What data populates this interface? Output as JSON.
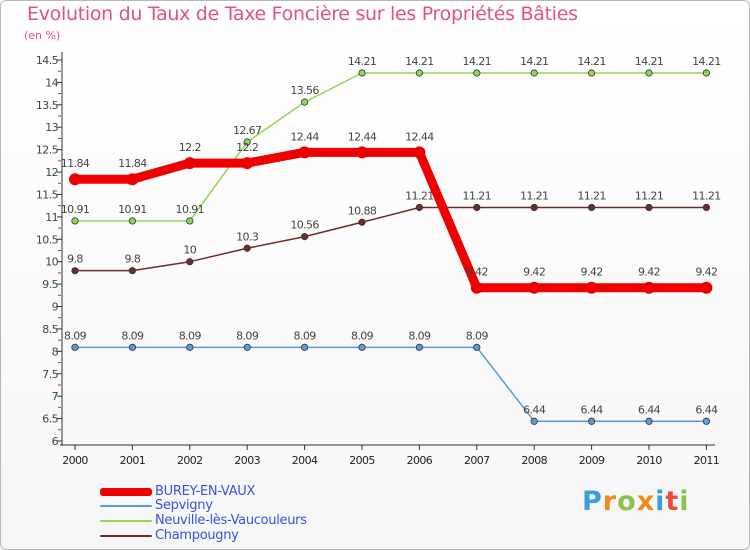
{
  "chart_data": {
    "type": "line",
    "title": "Evolution du Taux de Taxe Foncière sur les Propriétés Bâties",
    "ylabel": "(en %)",
    "xlabel": "",
    "categories": [
      "2000",
      "2001",
      "2002",
      "2003",
      "2004",
      "2005",
      "2006",
      "2007",
      "2008",
      "2009",
      "2010",
      "2011"
    ],
    "ylim": [
      6,
      14.5
    ],
    "yticks": [
      "6",
      "6.5",
      "7",
      "7.5",
      "8",
      "8.5",
      "9",
      "9.5",
      "10",
      "10.5",
      "11",
      "11.5",
      "12",
      "12.5",
      "13",
      "13.5",
      "14",
      "14.5"
    ],
    "series": [
      {
        "name": "Sepvigny",
        "color": "#5b9bd5",
        "values": [
          8.09,
          8.09,
          8.09,
          8.09,
          8.09,
          8.09,
          8.09,
          8.09,
          6.44,
          6.44,
          6.44,
          6.44
        ],
        "labels": [
          "8.09",
          "8.09",
          "8.09",
          "8.09",
          "8.09",
          "8.09",
          "8.09",
          "8.09",
          "6.44",
          "6.44",
          "6.44",
          "6.44"
        ]
      },
      {
        "name": "Neuville-lès-Vaucouleurs",
        "color": "#8ed65a",
        "values": [
          10.91,
          10.91,
          10.91,
          12.67,
          13.56,
          14.21,
          14.21,
          14.21,
          14.21,
          14.21,
          14.21,
          14.21
        ],
        "labels": [
          "10.91",
          "10.91",
          "10.91",
          "12.67",
          "13.56",
          "14.21",
          "14.21",
          "14.21",
          "14.21",
          "14.21",
          "14.21",
          "14.21"
        ]
      },
      {
        "name": "Champougny",
        "color": "#6b2c2c",
        "values": [
          9.8,
          9.8,
          10,
          10.3,
          10.56,
          10.88,
          11.21,
          11.21,
          11.21,
          11.21,
          11.21,
          11.21
        ],
        "labels": [
          "9.8",
          "9.8",
          "10",
          "10.3",
          "10.56",
          "10.88",
          "11.21",
          "11.21",
          "11.21",
          "11.21",
          "11.21",
          "11.21"
        ]
      },
      {
        "name": "BUREY-EN-VAUX",
        "color": "#ee0000",
        "values": [
          11.84,
          11.84,
          12.2,
          12.2,
          12.44,
          12.44,
          12.44,
          9.42,
          9.42,
          9.42,
          9.42,
          9.42
        ],
        "labels": [
          "11.84",
          "11.84",
          "12.2",
          "12.2",
          "12.44",
          "12.44",
          "12.44",
          "9.42",
          "9.42",
          "9.42",
          "9.42",
          "9.42"
        ]
      }
    ],
    "legend": [
      {
        "name": "BUREY-EN-VAUX",
        "color": "#ee0000"
      },
      {
        "name": "Sepvigny",
        "color": "#5b9bd5"
      },
      {
        "name": "Neuville-lès-Vaucouleurs",
        "color": "#8ed65a"
      },
      {
        "name": "Champougny",
        "color": "#6b2c2c"
      }
    ],
    "legend_position": "bottom-left",
    "grid": false
  },
  "brand": {
    "text": "Proxiti",
    "letters": [
      "P",
      "r",
      "o",
      "x",
      "i",
      "t",
      "i"
    ],
    "colors": [
      "#3d9be0",
      "#f08a1e",
      "#8bc34a",
      "#f08a1e",
      "#3d9be0",
      "#e84c3d",
      "#8bc34a"
    ]
  }
}
